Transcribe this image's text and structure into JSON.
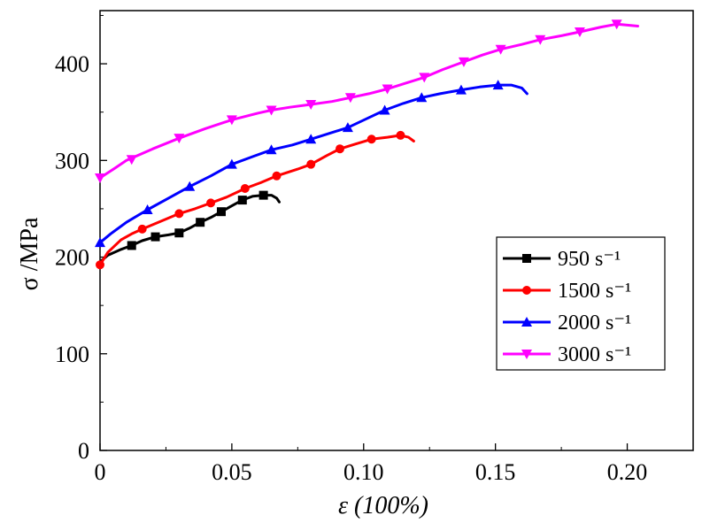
{
  "chart_data": {
    "type": "line",
    "xlabel": "ε (100%)",
    "ylabel": "σ /MPa",
    "xlim": [
      0,
      0.225
    ],
    "ylim": [
      0,
      455
    ],
    "x_ticks": [
      0,
      0.05,
      0.1,
      0.15,
      0.2
    ],
    "x_tick_labels": [
      "0",
      "0.05",
      "0.10",
      "0.15",
      "0.20"
    ],
    "y_ticks": [
      0,
      100,
      200,
      300,
      400
    ],
    "y_tick_labels": [
      "0",
      "100",
      "200",
      "300",
      "400"
    ],
    "grid": false,
    "legend_position": "center-right",
    "series": [
      {
        "name": "950 s⁻¹",
        "color": "#000000",
        "marker": "square",
        "x": [
          0,
          0.003,
          0.008,
          0.012,
          0.016,
          0.021,
          0.026,
          0.03,
          0.034,
          0.038,
          0.042,
          0.046,
          0.05,
          0.054,
          0.058,
          0.062,
          0.065,
          0.067,
          0.068
        ],
        "y": [
          195,
          202,
          208,
          212,
          217,
          221,
          223,
          225,
          230,
          236,
          241,
          247,
          253,
          259,
          263,
          264,
          264,
          261,
          257
        ],
        "marker_x": [
          0.012,
          0.021,
          0.03,
          0.038,
          0.046,
          0.054,
          0.062
        ],
        "marker_y": [
          212,
          221,
          225,
          236,
          247,
          259,
          264
        ]
      },
      {
        "name": "1500 s⁻¹",
        "color": "#ff0000",
        "marker": "circle",
        "x": [
          0,
          0.003,
          0.008,
          0.012,
          0.016,
          0.023,
          0.03,
          0.036,
          0.042,
          0.048,
          0.055,
          0.061,
          0.067,
          0.075,
          0.08,
          0.086,
          0.091,
          0.097,
          0.103,
          0.109,
          0.114,
          0.117,
          0.119
        ],
        "y": [
          192,
          205,
          218,
          224,
          229,
          237,
          245,
          250,
          256,
          262,
          271,
          277,
          284,
          291,
          296,
          305,
          312,
          317,
          322,
          324,
          326,
          324,
          320
        ],
        "marker_x": [
          0.0,
          0.016,
          0.03,
          0.042,
          0.055,
          0.067,
          0.08,
          0.091,
          0.103,
          0.114
        ],
        "marker_y": [
          192,
          229,
          245,
          256,
          271,
          284,
          296,
          312,
          322,
          326
        ]
      },
      {
        "name": "2000 s⁻¹",
        "color": "#0000ff",
        "marker": "triangle-up",
        "x": [
          0,
          0.004,
          0.01,
          0.018,
          0.026,
          0.034,
          0.042,
          0.05,
          0.058,
          0.065,
          0.073,
          0.08,
          0.087,
          0.094,
          0.101,
          0.108,
          0.115,
          0.122,
          0.129,
          0.137,
          0.144,
          0.151,
          0.156,
          0.16,
          0.162
        ],
        "y": [
          215,
          224,
          236,
          249,
          261,
          273,
          284,
          296,
          304,
          311,
          316,
          322,
          328,
          334,
          343,
          352,
          359,
          365,
          369,
          373,
          376,
          378,
          378,
          375,
          369
        ],
        "marker_x": [
          0.0,
          0.018,
          0.034,
          0.05,
          0.065,
          0.08,
          0.094,
          0.108,
          0.122,
          0.137,
          0.151
        ],
        "marker_y": [
          215,
          249,
          273,
          296,
          311,
          322,
          334,
          352,
          365,
          373,
          378
        ]
      },
      {
        "name": "3000 s⁻¹",
        "color": "#ff00ff",
        "marker": "triangle-down",
        "x": [
          0,
          0.004,
          0.01,
          0.02,
          0.03,
          0.04,
          0.05,
          0.06,
          0.065,
          0.072,
          0.08,
          0.088,
          0.095,
          0.102,
          0.109,
          0.116,
          0.123,
          0.13,
          0.138,
          0.145,
          0.152,
          0.16,
          0.167,
          0.175,
          0.182,
          0.19,
          0.196,
          0.2,
          0.204
        ],
        "y": [
          282,
          289,
          300,
          312,
          323,
          333,
          342,
          349,
          352,
          355,
          358,
          361,
          365,
          369,
          374,
          380,
          386,
          394,
          402,
          409,
          415,
          420,
          425,
          429,
          433,
          438,
          441,
          440,
          439
        ],
        "marker_x": [
          0.0,
          0.012,
          0.03,
          0.05,
          0.065,
          0.08,
          0.095,
          0.109,
          0.123,
          0.138,
          0.152,
          0.167,
          0.182,
          0.196
        ],
        "marker_y": [
          282,
          301,
          323,
          342,
          352,
          358,
          365,
          374,
          386,
          402,
          415,
          425,
          433,
          441
        ]
      }
    ]
  }
}
